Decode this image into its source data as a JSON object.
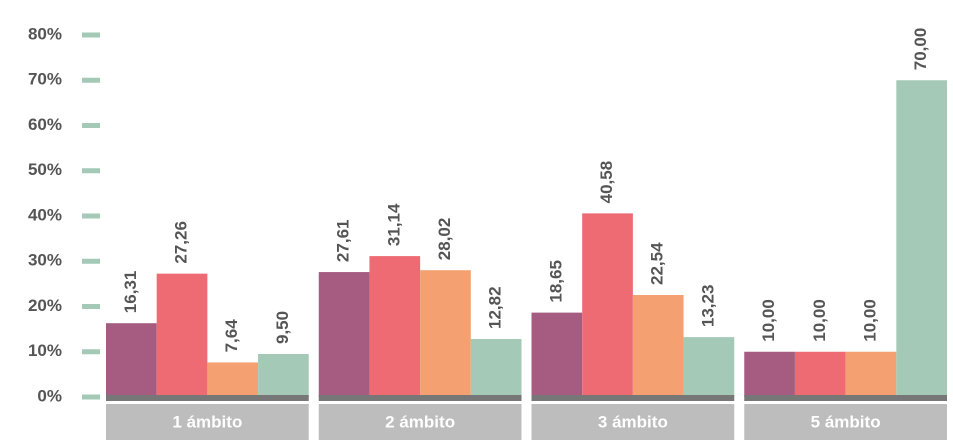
{
  "chart_data": {
    "type": "bar",
    "categories": [
      "1 ámbito",
      "2 ámbito",
      "3 ámbito",
      "5 ámbito"
    ],
    "series": [
      {
        "color": "#a65c80",
        "values": [
          16.31,
          27.61,
          18.65,
          10.0
        ],
        "value_labels": [
          "16,31",
          "27,61",
          "18,65",
          "10,00"
        ]
      },
      {
        "color": "#ee6b73",
        "values": [
          27.26,
          31.14,
          40.58,
          10.0
        ],
        "value_labels": [
          "27,26",
          "31,14",
          "40,58",
          "10,00"
        ]
      },
      {
        "color": "#f4a070",
        "values": [
          7.64,
          28.02,
          22.54,
          10.0
        ],
        "value_labels": [
          "7,64",
          "28,02",
          "22,54",
          "10,00"
        ]
      },
      {
        "color": "#a4c9b6",
        "values": [
          9.5,
          12.82,
          13.23,
          70.0
        ],
        "value_labels": [
          "9,50",
          "12,82",
          "13,23",
          "70,00"
        ]
      }
    ],
    "ylim": [
      0,
      80
    ],
    "yticks": [
      {
        "value": 0,
        "label": "0%"
      },
      {
        "value": 10,
        "label": "10%"
      },
      {
        "value": 20,
        "label": "20%"
      },
      {
        "value": 30,
        "label": "30%"
      },
      {
        "value": 40,
        "label": "40%"
      },
      {
        "value": 50,
        "label": "50%"
      },
      {
        "value": 60,
        "label": "60%"
      },
      {
        "value": 70,
        "label": "70%"
      },
      {
        "value": 80,
        "label": "80%"
      }
    ],
    "tick_color": "#a4c9b6"
  }
}
